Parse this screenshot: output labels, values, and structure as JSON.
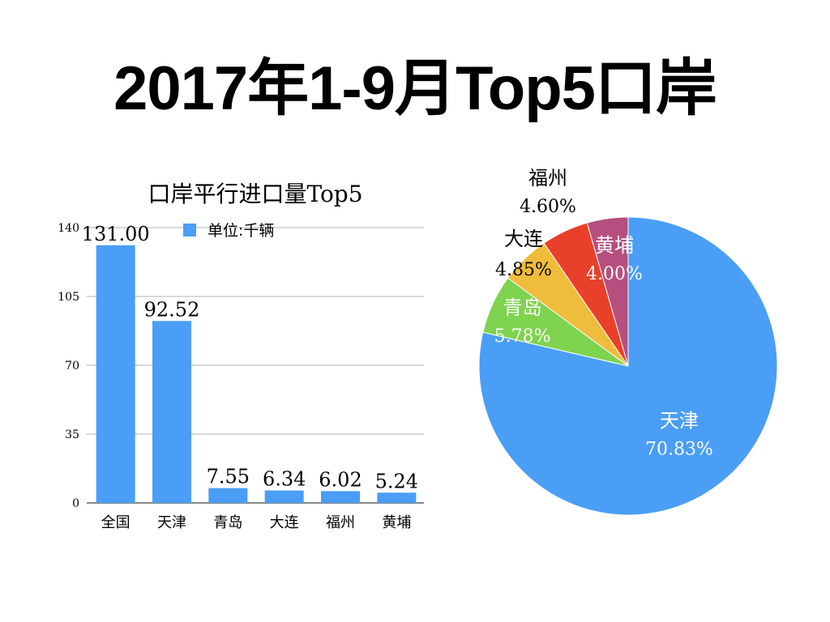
{
  "title": "2017年1-9月Top5口岸",
  "chart_data": [
    {
      "type": "bar",
      "title": "口岸平行进口量Top5",
      "legend": "单位:千辆",
      "legend_position": "top",
      "color": "#4a9ef5",
      "categories": [
        "全国",
        "天津",
        "青岛",
        "大连",
        "福州",
        "黄埔"
      ],
      "values": [
        131.0,
        92.52,
        7.55,
        6.34,
        6.02,
        5.24
      ],
      "value_labels": [
        "131.00",
        "92.52",
        "7.55",
        "6.34",
        "6.02",
        "5.24"
      ],
      "yticks": [
        "0",
        "35",
        "70",
        "105",
        "140"
      ],
      "ylim": [
        0,
        140
      ],
      "grid": true
    },
    {
      "type": "pie",
      "slices": [
        {
          "name": "天津",
          "value": 70.83,
          "label": "70.83%",
          "color": "#4a9ef5"
        },
        {
          "name": "青岛",
          "value": 5.78,
          "label": "5.78%",
          "color": "#7ed34f"
        },
        {
          "name": "大连",
          "value": 4.85,
          "label": "4.85%",
          "color": "#f0bc3c"
        },
        {
          "name": "福州",
          "value": 4.6,
          "label": "4.60%",
          "color": "#e8402a"
        },
        {
          "name": "黄埔",
          "value": 4.0,
          "label": "4.00%",
          "color": "#b54f7f"
        }
      ]
    }
  ]
}
